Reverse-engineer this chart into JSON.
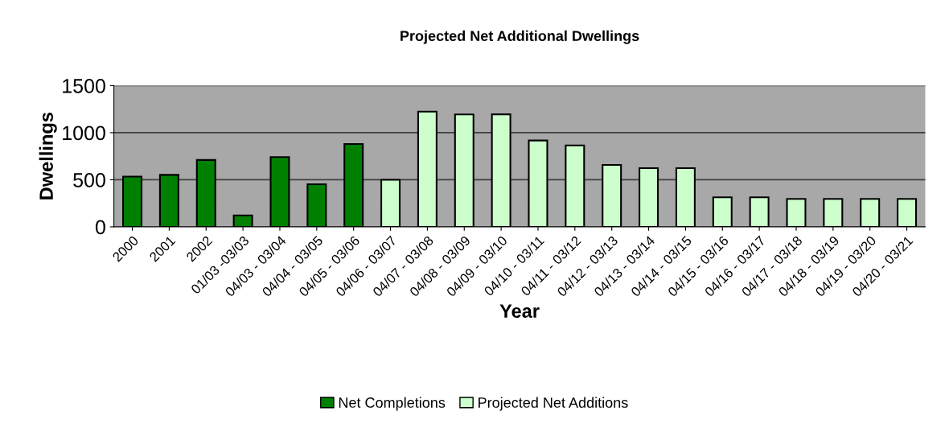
{
  "chart_data": {
    "type": "bar",
    "title": "Projected Net Additional Dwellings",
    "xlabel": "Year",
    "ylabel": "Dwellings",
    "categories": [
      "2000",
      "2001",
      "2002",
      "01/03 -03/03",
      "04/03 - 03/04",
      "04/04 - 03/05",
      "04/05 - 03/06",
      "04/06 - 03/07",
      "04/07 - 03/08",
      "04/08 - 03/09",
      "04/09 - 03/10",
      "04/10 - 03/11",
      "04/11 - 03/12",
      "04/12 - 03/13",
      "04/13 - 03/14",
      "04/14 - 03/15",
      "04/15 - 03/16",
      "04/16 - 03/17",
      "04/17 - 03/18",
      "04/18 - 03/19",
      "04/19 - 03/20",
      "04/20 - 03/21"
    ],
    "series": [
      {
        "name": "Net Completions",
        "color": "#008000",
        "values": [
          534,
          552,
          710,
          121,
          741,
          452,
          879,
          null,
          null,
          null,
          null,
          null,
          null,
          null,
          null,
          null,
          null,
          null,
          null,
          null,
          null,
          null
        ]
      },
      {
        "name": "Projected Net Additions",
        "color": "#ccffcc",
        "values": [
          null,
          null,
          null,
          null,
          null,
          null,
          null,
          500,
          1224,
          1193,
          1195,
          917,
          865,
          658,
          623,
          623,
          313,
          313,
          297,
          297,
          297,
          297
        ]
      }
    ],
    "ylim": [
      0,
      1500
    ],
    "yticks": [
      0,
      500,
      1000,
      1500
    ],
    "grid": "y",
    "legend": "bottom"
  }
}
